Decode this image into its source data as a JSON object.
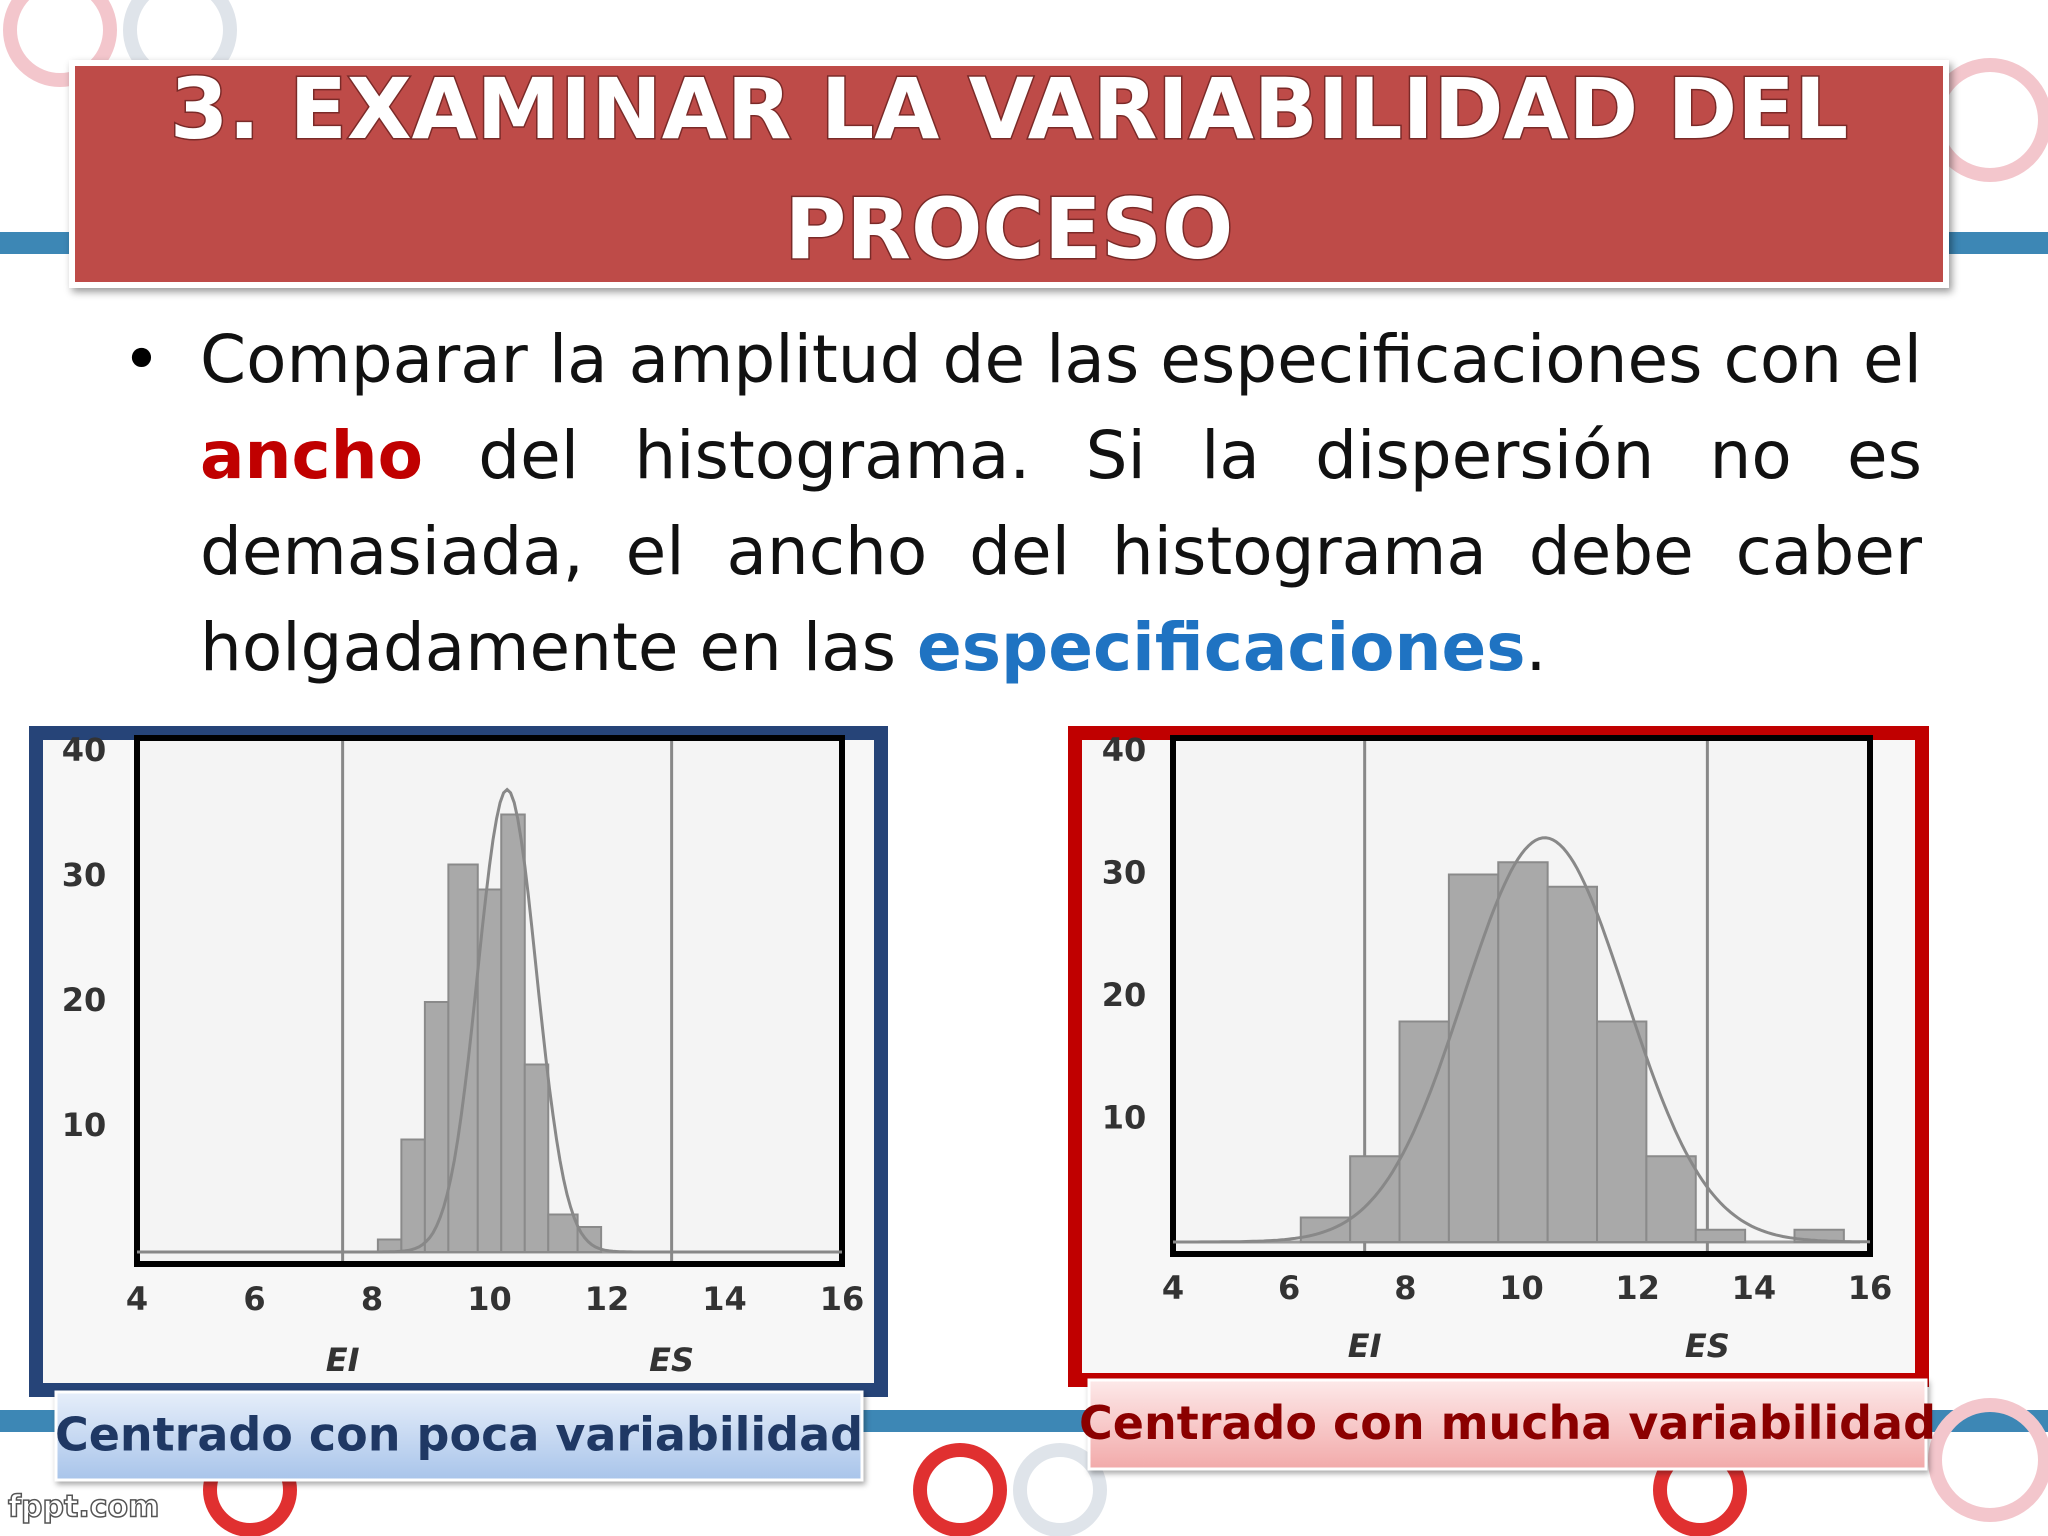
{
  "title": [
    "3. EXAMINAR LA VARIABILIDAD DEL",
    "PROCESO"
  ],
  "bullet": [
    "Comparar la amplitud de las especificaciones con el ",
    "ancho",
    " del histograma. Si la dispersión no es demasiada, el ancho del histograma debe caber holgadamente en las ",
    "especificaciones",
    "."
  ],
  "footer": "fppt.com",
  "chart_data": [
    {
      "type": "histogram",
      "caption": "Centrado con poca variabilidad",
      "bins": [
        8.1,
        8.5,
        8.9,
        9.3,
        9.8,
        10.2,
        10.6,
        11.0,
        11.5,
        11.9
      ],
      "counts": [
        1,
        9,
        20,
        31,
        29,
        35,
        15,
        3,
        2
      ],
      "color": "#a9a9a9",
      "fit": {
        "mean": 10.3,
        "sd": 0.5,
        "peak": 37
      },
      "spec_limits": [
        {
          "label": "EI",
          "value": 7.5
        },
        {
          "label": "ES",
          "value": 13.1
        }
      ],
      "xlim": [
        4,
        16
      ],
      "xticks": [
        4,
        6,
        8,
        10,
        12,
        14,
        16
      ],
      "ylim": [
        0,
        40
      ],
      "yticks": [
        10,
        20,
        30,
        40
      ],
      "frame_color": "#264478"
    },
    {
      "type": "histogram",
      "caption": "Centrado con mucha variabilidad",
      "bins": [
        6.2,
        7.05,
        7.9,
        8.75,
        9.6,
        10.45,
        11.3,
        12.15,
        13.0,
        13.85,
        14.7,
        15.55
      ],
      "counts": [
        2,
        7,
        18,
        30,
        31,
        29,
        18,
        7,
        1,
        0,
        1
      ],
      "color": "#a9a9a9",
      "fit": {
        "mean": 10.4,
        "sd": 1.4,
        "peak": 33
      },
      "spec_limits": [
        {
          "label": "EI",
          "value": 7.3
        },
        {
          "label": "ES",
          "value": 13.2
        }
      ],
      "xlim": [
        4,
        16
      ],
      "xticks": [
        4,
        6,
        8,
        10,
        12,
        14,
        16
      ],
      "ylim": [
        0,
        40
      ],
      "yticks": [
        10,
        20,
        30,
        40
      ],
      "frame_color": "#c00000"
    }
  ]
}
